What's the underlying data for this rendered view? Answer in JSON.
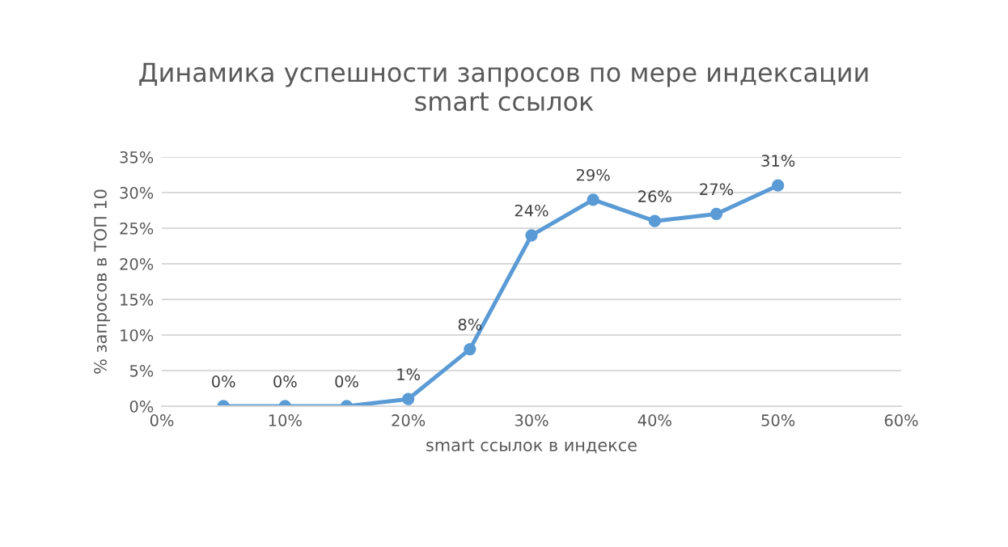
{
  "chart_data": {
    "type": "line",
    "title": "Динамика успешности запросов по мере индексации\nsmart ссылок",
    "xlabel": "smart ссылок в индексе",
    "ylabel": "% запросов в ТОП 10",
    "x": [
      5,
      10,
      15,
      20,
      25,
      30,
      35,
      40,
      45,
      50
    ],
    "series": [
      {
        "color": "#5b9bd5",
        "values": [
          0,
          0,
          0,
          1,
          8,
          24,
          29,
          26,
          27,
          31
        ],
        "value_labels": [
          "0%",
          "0%",
          "0%",
          "1%",
          "8%",
          "24%",
          "29%",
          "26%",
          "27%",
          "31%"
        ]
      }
    ],
    "xlim": [
      0,
      60
    ],
    "xticks": [
      {
        "value": 0,
        "label": "0%"
      },
      {
        "value": 10,
        "label": "10%"
      },
      {
        "value": 20,
        "label": "20%"
      },
      {
        "value": 30,
        "label": "30%"
      },
      {
        "value": 40,
        "label": "40%"
      },
      {
        "value": 50,
        "label": "50%"
      },
      {
        "value": 60,
        "label": "60%"
      }
    ],
    "ylim": [
      0,
      35
    ],
    "yticks": [
      {
        "value": 0,
        "label": "0%"
      },
      {
        "value": 5,
        "label": "5%"
      },
      {
        "value": 10,
        "label": "10%"
      },
      {
        "value": 15,
        "label": "15%"
      },
      {
        "value": 20,
        "label": "20%"
      },
      {
        "value": 25,
        "label": "25%"
      },
      {
        "value": 30,
        "label": "30%"
      },
      {
        "value": 35,
        "label": "35%"
      }
    ],
    "grid": "y",
    "marker": "circle",
    "line_style": "solid",
    "legend": false
  }
}
